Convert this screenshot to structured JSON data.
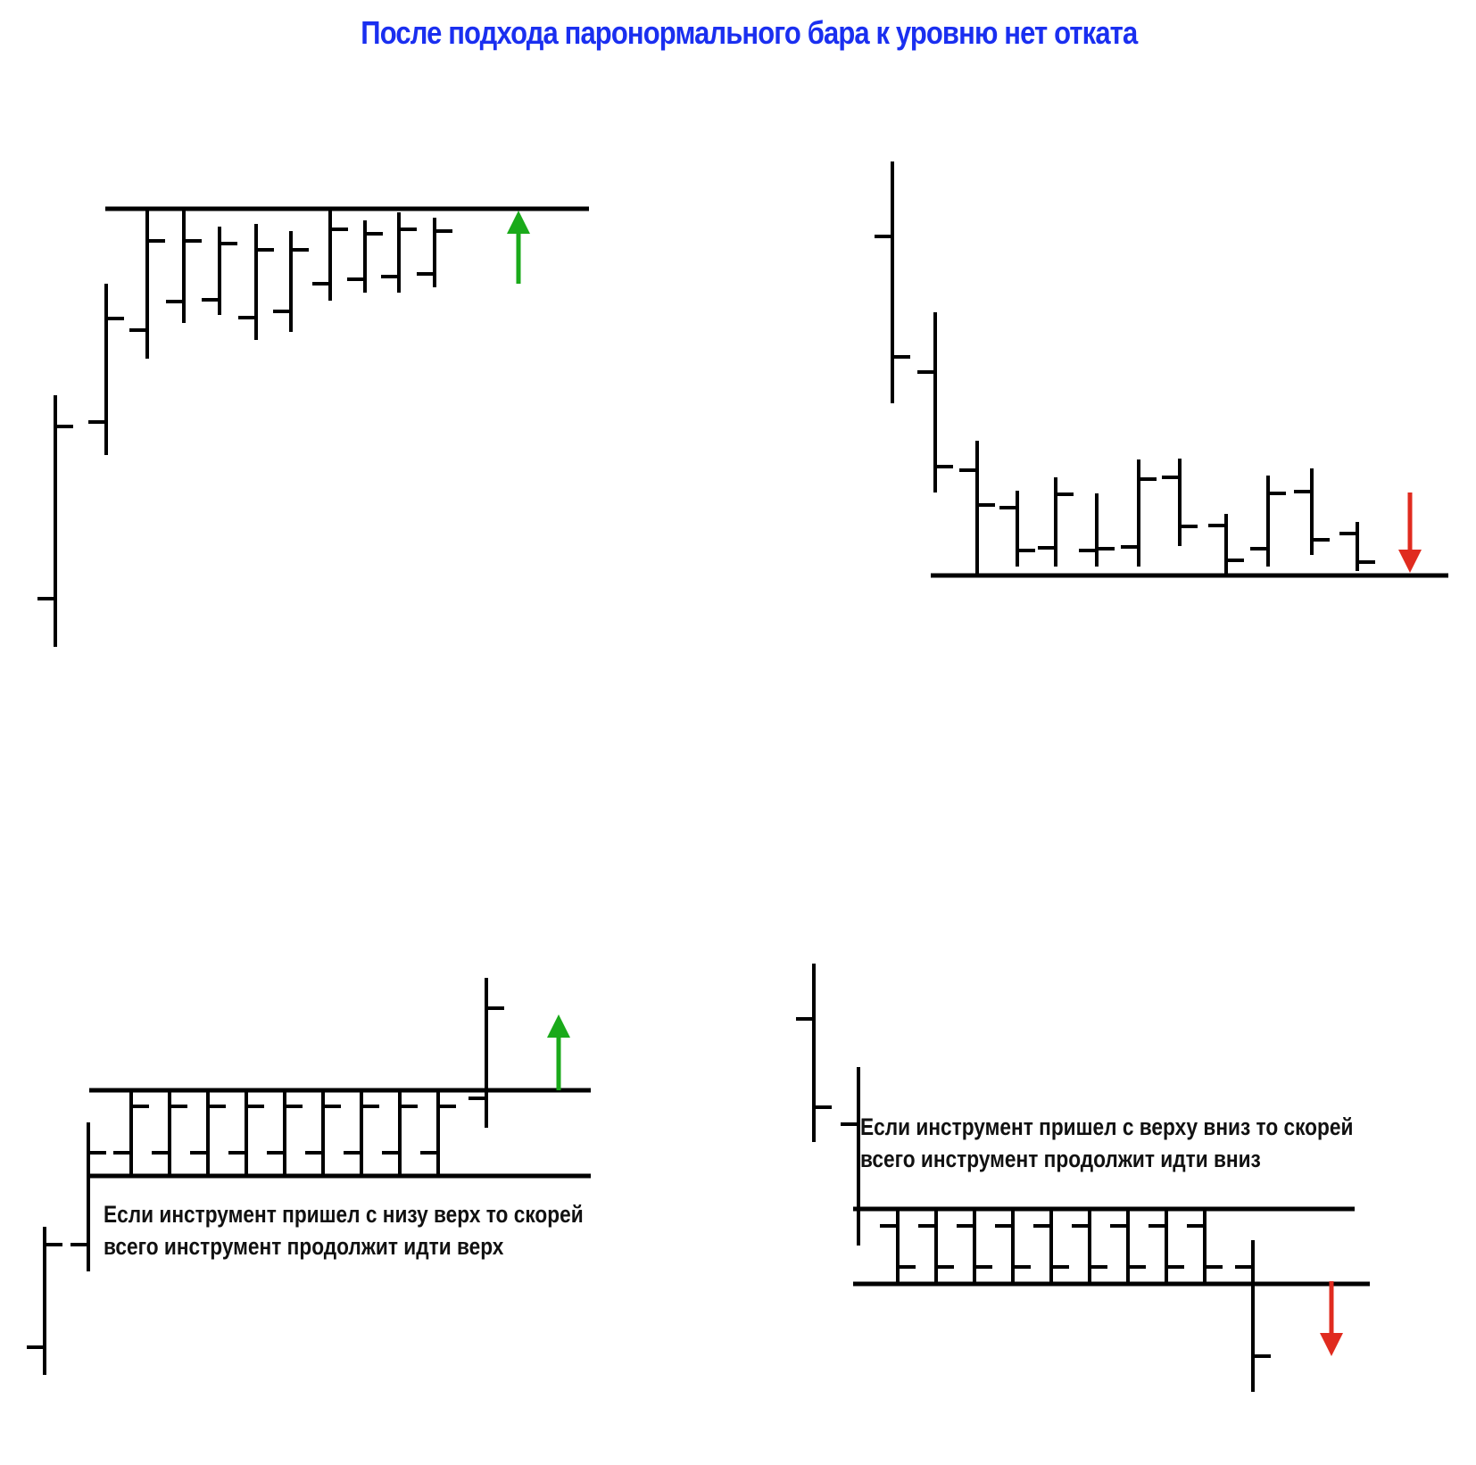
{
  "title": "После подхода паронормального бара к уровню нет отката",
  "colors": {
    "title": "#1a2ff0",
    "bars": "#000000",
    "arrow_up": "#1aaa1a",
    "arrow_down": "#e02b1f"
  },
  "panels": [
    {
      "id": "top-left",
      "arrow": {
        "direction": "up",
        "color": "arrow_up"
      },
      "caption": []
    },
    {
      "id": "top-right",
      "arrow": {
        "direction": "down",
        "color": "arrow_down"
      },
      "caption": []
    },
    {
      "id": "bottom-left",
      "arrow": {
        "direction": "up",
        "color": "arrow_up"
      },
      "caption": [
        "Если инструмент пришел с низу верх то скорей",
        "всего инструмент продолжит идти верх"
      ]
    },
    {
      "id": "bottom-right",
      "arrow": {
        "direction": "down",
        "color": "arrow_down"
      },
      "caption": [
        "Если инструмент пришел с верху вниз то скорей",
        "всего инструмент продолжит идти вниз"
      ]
    }
  ]
}
